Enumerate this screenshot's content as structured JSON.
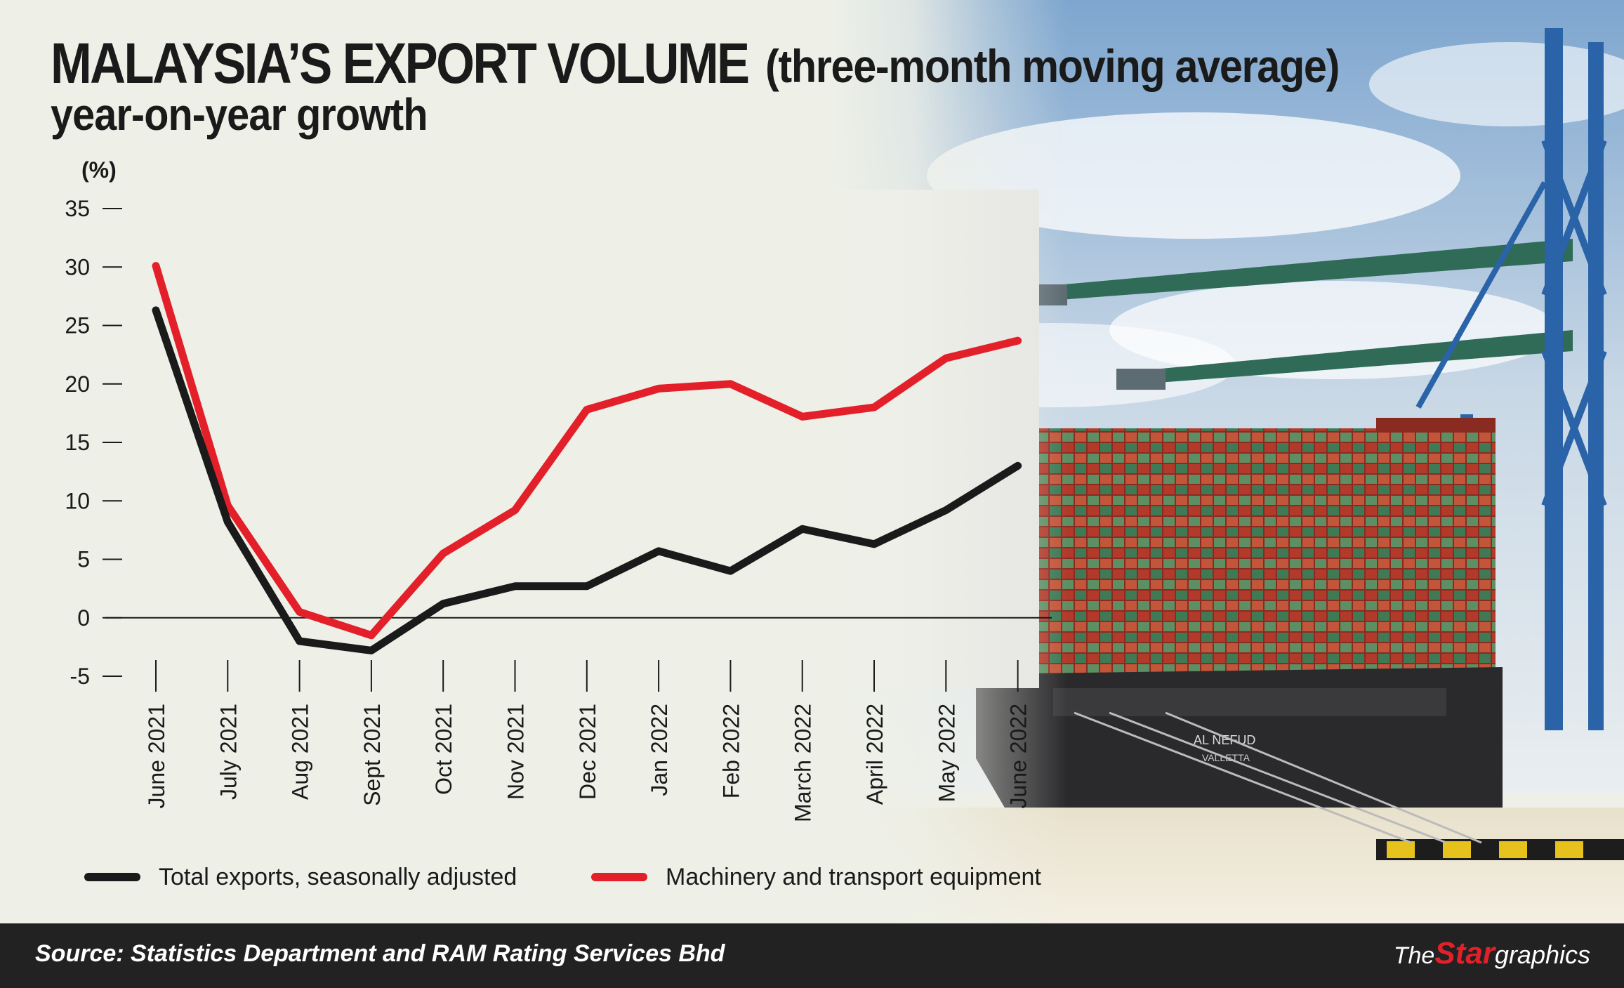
{
  "title": {
    "main": "MALAYSIA’S EXPORT VOLUME",
    "paren": "(three-month moving average)",
    "subtitle": "year-on-year growth"
  },
  "unit": "(%)",
  "footer": {
    "source": "Source: Statistics Department and RAM Rating Services Bhd",
    "logo_the": "The",
    "logo_star": "Star",
    "logo_graphics": "graphics"
  },
  "colors": {
    "total_exports": "#1a1a1a",
    "machinery": "#e3202a",
    "footer_bg": "#222222",
    "accent_red": "#e3202a"
  },
  "chart_data": {
    "type": "line",
    "ylabel": "(%)",
    "ylim": [
      -5,
      35
    ],
    "yticks": [
      35,
      30,
      25,
      20,
      15,
      10,
      5,
      0,
      -5
    ],
    "grid": false,
    "legend_position": "bottom",
    "categories": [
      "June 2021",
      "July 2021",
      "Aug 2021",
      "Sept 2021",
      "Oct 2021",
      "Nov 2021",
      "Dec 2021",
      "Jan 2022",
      "Feb 2022",
      "March 2022",
      "April 2022",
      "May 2022",
      "June 2022"
    ],
    "series": [
      {
        "name": "Total exports, seasonally adjusted",
        "color": "#1a1a1a",
        "values": [
          26.3,
          8.2,
          -2.0,
          -2.8,
          1.2,
          2.7,
          2.7,
          5.7,
          4.0,
          7.6,
          6.3,
          9.2,
          13.0
        ]
      },
      {
        "name": "Machinery and transport equipment",
        "color": "#e3202a",
        "values": [
          30.1,
          9.6,
          0.5,
          -1.5,
          5.5,
          9.2,
          17.8,
          19.6,
          20.0,
          17.2,
          18.0,
          22.2,
          23.7
        ]
      }
    ]
  },
  "photo": {
    "scene": "container-port-crane-ship",
    "ship_name": "AL NEFUD",
    "ship_port": "VALLETTA"
  }
}
